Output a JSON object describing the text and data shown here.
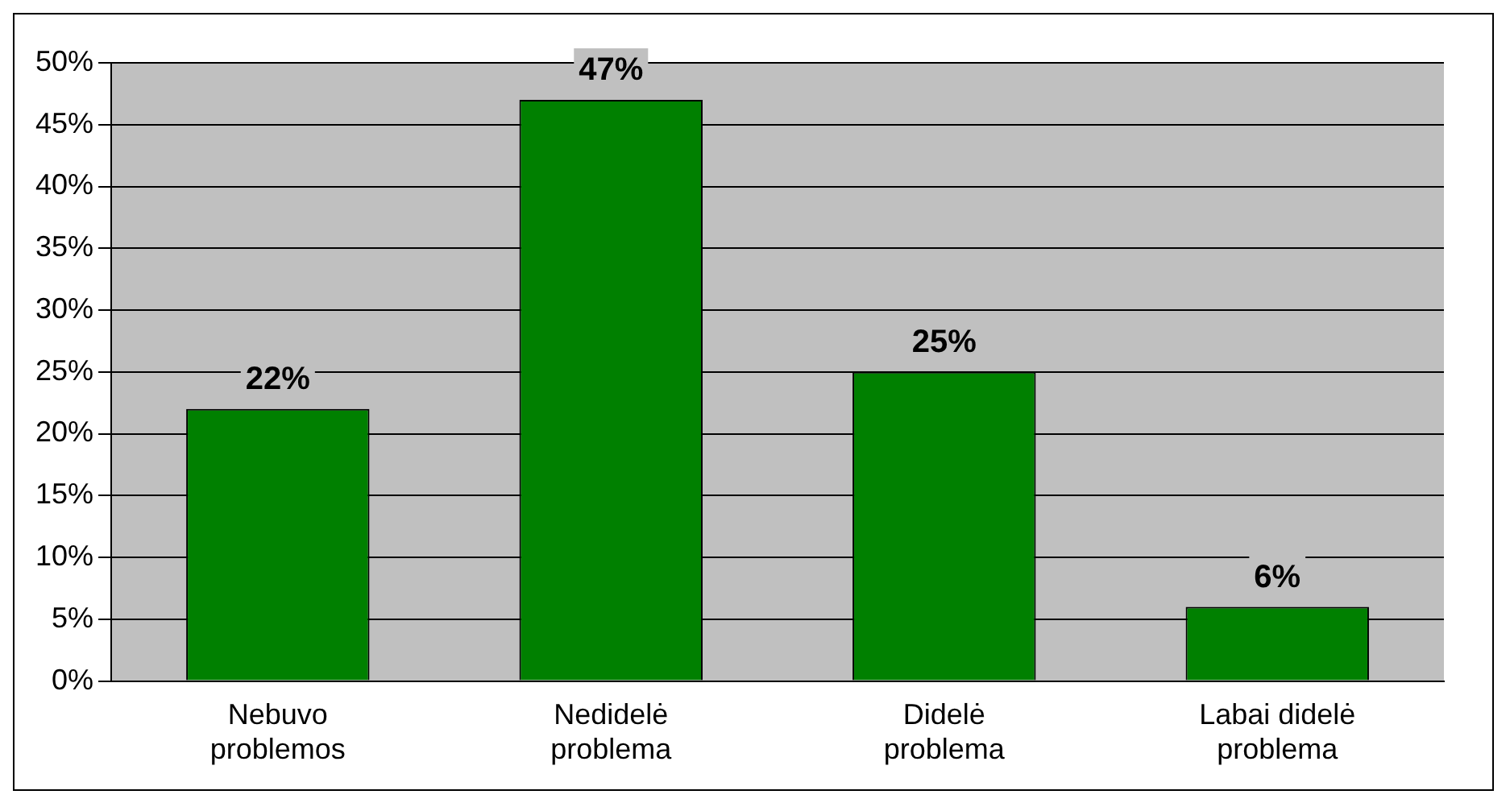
{
  "chart_data": {
    "type": "bar",
    "categories": [
      "Nebuvo problemos",
      "Nedidelė problema",
      "Didelė problema",
      "Labai didelė problema"
    ],
    "values": [
      22,
      47,
      25,
      6
    ],
    "value_labels": [
      "22%",
      "47%",
      "25%",
      "6%"
    ],
    "color": "#008000",
    "ylim": [
      0,
      50
    ],
    "yticks": [
      {
        "value": 0,
        "label": "0%"
      },
      {
        "value": 5,
        "label": "5%"
      },
      {
        "value": 10,
        "label": "10%"
      },
      {
        "value": 15,
        "label": "15%"
      },
      {
        "value": 20,
        "label": "20%"
      },
      {
        "value": 25,
        "label": "25%"
      },
      {
        "value": 30,
        "label": "30%"
      },
      {
        "value": 35,
        "label": "35%"
      },
      {
        "value": 40,
        "label": "40%"
      },
      {
        "value": 45,
        "label": "45%"
      },
      {
        "value": 50,
        "label": "50%"
      }
    ],
    "grid": "y",
    "legend": false
  }
}
